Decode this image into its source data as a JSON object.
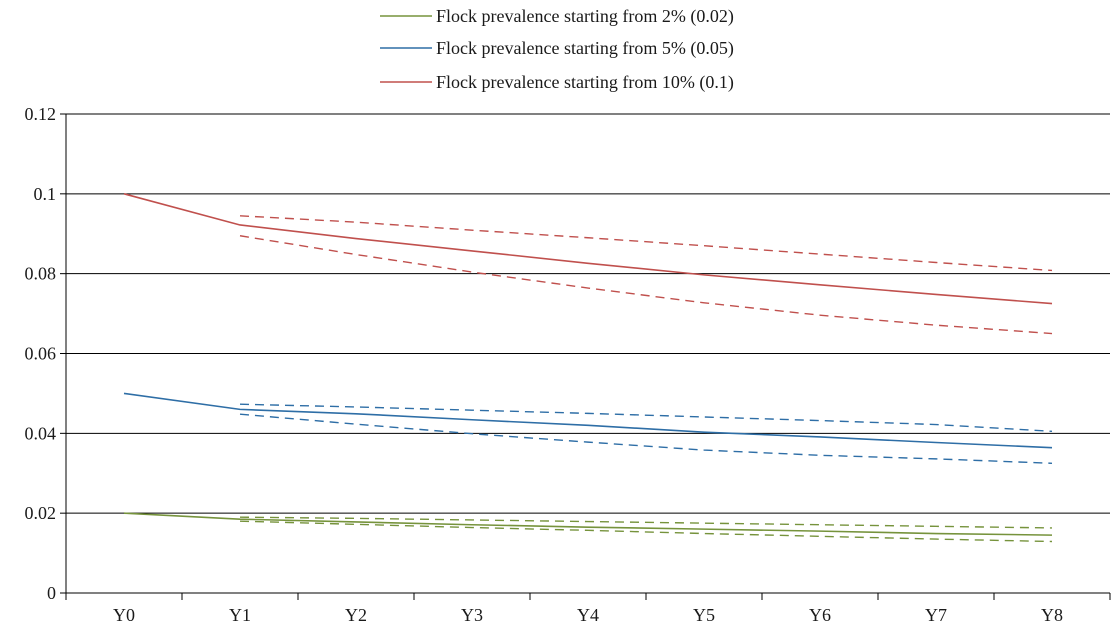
{
  "chart_data": {
    "type": "line",
    "title": "",
    "xlabel": "",
    "ylabel": "",
    "categories": [
      "Y0",
      "Y1",
      "Y2",
      "Y3",
      "Y4",
      "Y5",
      "Y6",
      "Y7",
      "Y8"
    ],
    "ylim": [
      0,
      0.12
    ],
    "yticks": [
      "0",
      "0.02",
      "0.04",
      "0.06",
      "0.08",
      "0.1",
      "0.12"
    ],
    "grid": "horizontal",
    "legend_position": "top-center",
    "series": [
      {
        "name": "Flock prevalence starting from 2% (0.02)",
        "color": "#76933c",
        "values": [
          0.02,
          0.0185,
          0.0178,
          0.0171,
          0.0165,
          0.016,
          0.0155,
          0.0149,
          0.0145
        ],
        "upper": [
          null,
          0.019,
          0.0187,
          0.0183,
          0.0179,
          0.0175,
          0.0171,
          0.0167,
          0.0163
        ],
        "lower": [
          null,
          0.018,
          0.0172,
          0.0164,
          0.0157,
          0.0149,
          0.0142,
          0.0135,
          0.0129
        ]
      },
      {
        "name": "Flock prevalence starting from 5% (0.05)",
        "color": "#2e6ea6",
        "values": [
          0.05,
          0.046,
          0.0449,
          0.0434,
          0.042,
          0.0403,
          0.0391,
          0.0377,
          0.0364
        ],
        "upper": [
          null,
          0.0473,
          0.0466,
          0.0458,
          0.045,
          0.0441,
          0.0432,
          0.0422,
          0.0405
        ],
        "lower": [
          null,
          0.0448,
          0.0423,
          0.0399,
          0.0378,
          0.0358,
          0.0345,
          0.0336,
          0.0325
        ]
      },
      {
        "name": "Flock prevalence starting from 10% (0.1)",
        "color": "#c0504d",
        "values": [
          0.1,
          0.0922,
          0.0888,
          0.0857,
          0.0826,
          0.0797,
          0.0772,
          0.0748,
          0.0725
        ],
        "upper": [
          null,
          0.0945,
          0.0929,
          0.0909,
          0.089,
          0.087,
          0.0849,
          0.0828,
          0.0808
        ],
        "lower": [
          null,
          0.0895,
          0.0848,
          0.0804,
          0.0764,
          0.0727,
          0.0696,
          0.0671,
          0.065
        ]
      }
    ]
  }
}
